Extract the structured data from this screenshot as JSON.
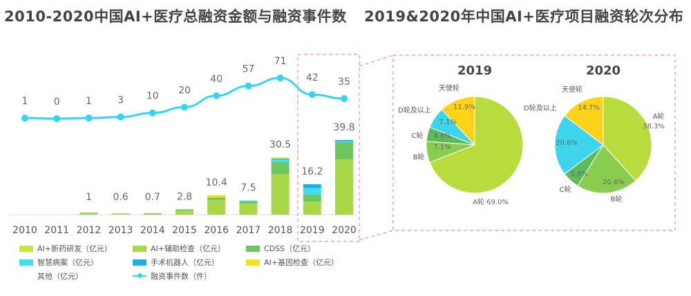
{
  "titles": {
    "left": "2010-2020中国AI+医疗总融资金额与融资事件数",
    "right": "2019&2020年中国AI+医疗项目融资轮次分布"
  },
  "colors": {
    "ai_drug": "#c8e63c",
    "ai_aux": "#a6d84a",
    "cdss": "#6cc85c",
    "smart_hospital": "#3ee0f0",
    "surgery_robot": "#1ab0e6",
    "ai_gene": "#f5e21a",
    "other": "#cccccc",
    "events_line": "#35d4f0",
    "highlight_border": "#f2a6a6",
    "pie_a": "#b8dc3c",
    "pie_b": "#88cc50",
    "pie_c": "#5cbc5c",
    "pie_d": "#3ed4ec",
    "pie_angel": "#ffd21a"
  },
  "chart_data": [
    {
      "type": "bar",
      "title": "2010-2020中国AI+医疗总融资金额与融资事件数",
      "categories": [
        "2010",
        "2011",
        "2012",
        "2013",
        "2014",
        "2015",
        "2016",
        "2017",
        "2018",
        "2019",
        "2020"
      ],
      "totals": [
        "",
        "",
        "1",
        "0.6",
        "0.7",
        "2.8",
        "10.4",
        "7.5",
        "30.5",
        "16.2",
        "39.8"
      ],
      "total_values": [
        0,
        0,
        1,
        0.6,
        0.7,
        2.8,
        10.4,
        7.5,
        30.5,
        16.2,
        39.8
      ],
      "series": [
        {
          "name": "AI+新药研发（亿元）",
          "color": "#c8e63c",
          "values": [
            0,
            0,
            0,
            0,
            0,
            0,
            0,
            0,
            0,
            0,
            0
          ]
        },
        {
          "name": "AI+辅助检查（亿元）",
          "color": "#a6d84a",
          "values": [
            0,
            0,
            0.6,
            0.3,
            0.4,
            2.1,
            7.9,
            5.8,
            21.5,
            6.9,
            29.5
          ]
        },
        {
          "name": "CDSS（亿元）",
          "color": "#6cc85c",
          "values": [
            0,
            0,
            0.4,
            0.3,
            0.3,
            0.7,
            1.2,
            1.2,
            6.5,
            3.8,
            9.0
          ]
        },
        {
          "name": "智慧病案（亿元）",
          "color": "#3ee0f0",
          "values": [
            0,
            0,
            0,
            0,
            0,
            0,
            0,
            0.5,
            1.5,
            3.5,
            0.6
          ]
        },
        {
          "name": "手术机器人（亿元）",
          "color": "#1ab0e6",
          "values": [
            0,
            0,
            0,
            0,
            0,
            0,
            0,
            0,
            0.4,
            2.0,
            0.7
          ]
        },
        {
          "name": "AI+基因检查（亿元）",
          "color": "#f5e21a",
          "values": [
            0,
            0,
            0,
            0,
            0,
            0,
            1.3,
            0,
            0.6,
            0,
            0
          ]
        },
        {
          "name": "其他（亿元）",
          "color": "#cccccc",
          "values": [
            0,
            0,
            0,
            0,
            0,
            0,
            0,
            0,
            0,
            0,
            0
          ]
        }
      ],
      "line": {
        "name": "融资事件数（件）",
        "values": [
          1,
          0,
          1,
          3,
          10,
          20,
          40,
          57,
          71,
          42,
          35
        ]
      }
    },
    {
      "type": "pie",
      "title": "2019",
      "slices": [
        {
          "label": "A轮",
          "value": 69.0,
          "value_text": "A轮 69.0%",
          "color": "#b8dc3c"
        },
        {
          "label": "B轮",
          "value": 7.1,
          "value_text": "7.1%",
          "color": "#88cc50"
        },
        {
          "label": "C轮",
          "value": 4.8,
          "value_text": "4.8%",
          "color": "#5cbc5c"
        },
        {
          "label": "D轮及以上",
          "value": 7.1,
          "value_text": "7.1%",
          "color": "#3ed4ec"
        },
        {
          "label": "天使轮",
          "value": 11.9,
          "value_text": "11.9%",
          "color": "#ffd21a"
        }
      ]
    },
    {
      "type": "pie",
      "title": "2020",
      "slices": [
        {
          "label": "A轮",
          "value": 38.3,
          "value_text": "38.3%",
          "color": "#b8dc3c"
        },
        {
          "label": "B轮",
          "value": 20.6,
          "value_text": "20.6%",
          "color": "#88cc50"
        },
        {
          "label": "C轮",
          "value": 5.8,
          "value_text": "5.8%",
          "color": "#5cbc5c"
        },
        {
          "label": "D轮及以上",
          "value": 20.6,
          "value_text": "20.6%",
          "color": "#3ed4ec"
        },
        {
          "label": "天使轮",
          "value": 14.7,
          "value_text": "14.7%",
          "color": "#ffd21a"
        }
      ]
    }
  ]
}
